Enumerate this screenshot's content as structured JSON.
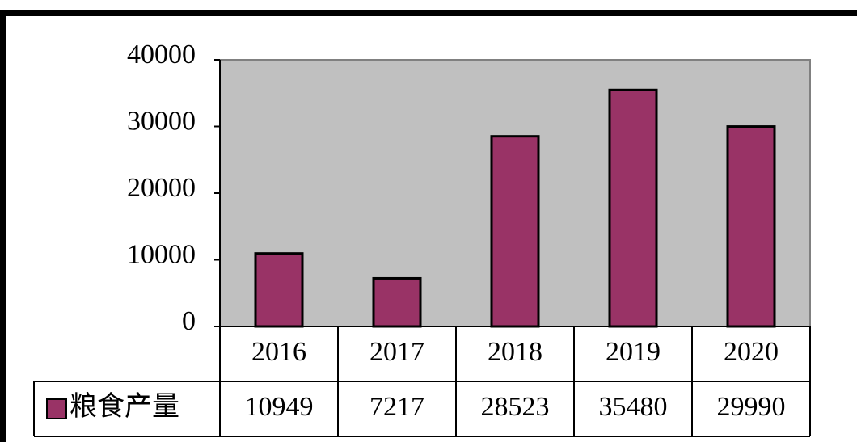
{
  "chart_data": {
    "type": "bar",
    "categories": [
      "2016",
      "2017",
      "2018",
      "2019",
      "2020"
    ],
    "series": [
      {
        "name": "粮食产量",
        "color": "#993366",
        "values": [
          10949,
          7217,
          28523,
          35480,
          29990
        ]
      }
    ],
    "ylim": [
      0,
      40000
    ],
    "yticks": [
      0,
      10000,
      20000,
      30000,
      40000
    ],
    "plot_background": "#c0c0c0",
    "data_table": true
  }
}
